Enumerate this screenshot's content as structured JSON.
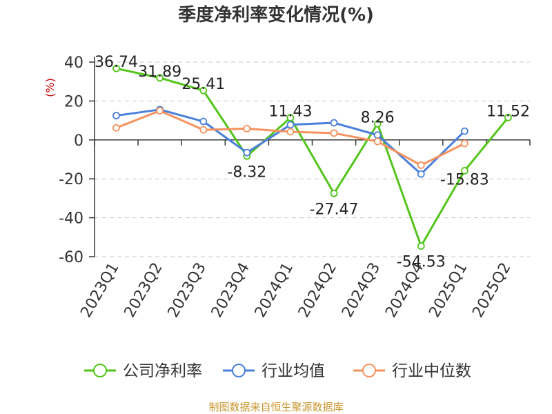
{
  "chart_data": {
    "type": "line",
    "title": "季度净利率变化情况(%)",
    "ylabel": "(%)",
    "xlabel": "",
    "ylim": [
      -60,
      40
    ],
    "yticks": [
      40,
      20,
      0,
      -20,
      -40,
      -60
    ],
    "grid": true,
    "legend_position": "bottom",
    "categories": [
      "2023Q1",
      "2023Q2",
      "2023Q3",
      "2023Q4",
      "2024Q1",
      "2024Q2",
      "2024Q3",
      "2024Q4",
      "2025Q1",
      "2025Q2"
    ],
    "series": [
      {
        "name": "公司净利率",
        "color": "#52c41a",
        "values": [
          36.74,
          31.89,
          25.41,
          -8.32,
          11.43,
          -27.47,
          8.26,
          -54.53,
          -15.83,
          11.52
        ],
        "labels": [
          "36.74",
          "31.89",
          "25.41",
          "-8.32",
          "11.43",
          "-27.47",
          "8.26",
          "-54.53",
          "-15.83",
          "11.52"
        ]
      },
      {
        "name": "行业均值",
        "color": "#4a7fdb",
        "values": [
          12.5,
          15.6,
          9.5,
          -6.5,
          7.8,
          8.8,
          2.5,
          -17.5,
          4.5,
          null
        ]
      },
      {
        "name": "行业中位数",
        "color": "#f5925e",
        "values": [
          6.2,
          15.0,
          5.2,
          5.8,
          4.2,
          3.5,
          -0.8,
          -13.0,
          -1.8,
          null
        ]
      }
    ]
  },
  "source": "制图数据来自恒生聚源数据库"
}
